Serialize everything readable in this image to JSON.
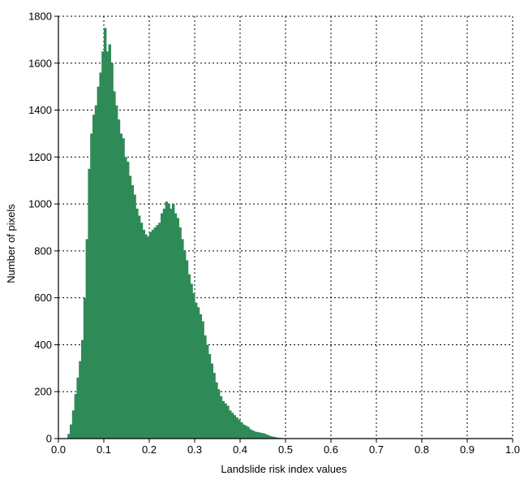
{
  "chart_data": {
    "type": "bar",
    "title": "",
    "xlabel": "Landslide risk index values",
    "ylabel": "Number of pixels",
    "xlim": [
      0.0,
      1.0
    ],
    "ylim": [
      0,
      1800
    ],
    "x_ticks": [
      "0.0",
      "0.1",
      "0.2",
      "0.3",
      "0.4",
      "0.5",
      "0.6",
      "0.7",
      "0.8",
      "0.9",
      "1.0"
    ],
    "y_ticks": [
      "0",
      "200",
      "400",
      "600",
      "800",
      "1000",
      "1200",
      "1400",
      "1600",
      "1800"
    ],
    "grid": true,
    "bar_color": "#2e8b57",
    "bins": {
      "x": [
        0.02,
        0.025,
        0.03,
        0.035,
        0.04,
        0.045,
        0.05,
        0.055,
        0.06,
        0.065,
        0.07,
        0.075,
        0.08,
        0.085,
        0.09,
        0.095,
        0.1,
        0.105,
        0.11,
        0.115,
        0.12,
        0.125,
        0.13,
        0.135,
        0.14,
        0.145,
        0.15,
        0.155,
        0.16,
        0.165,
        0.17,
        0.175,
        0.18,
        0.185,
        0.19,
        0.195,
        0.2,
        0.205,
        0.21,
        0.215,
        0.22,
        0.225,
        0.23,
        0.235,
        0.24,
        0.245,
        0.25,
        0.255,
        0.26,
        0.265,
        0.27,
        0.275,
        0.28,
        0.285,
        0.29,
        0.295,
        0.3,
        0.305,
        0.31,
        0.315,
        0.32,
        0.325,
        0.33,
        0.335,
        0.34,
        0.345,
        0.35,
        0.355,
        0.36,
        0.365,
        0.37,
        0.375,
        0.38,
        0.385,
        0.39,
        0.395,
        0.4,
        0.405,
        0.41,
        0.415,
        0.42,
        0.425,
        0.43,
        0.435,
        0.44,
        0.445,
        0.45,
        0.455,
        0.46,
        0.465,
        0.47,
        0.475,
        0.48,
        0.485,
        0.49,
        0.495,
        0.5
      ],
      "y": [
        20,
        60,
        120,
        190,
        260,
        330,
        420,
        600,
        850,
        1150,
        1300,
        1380,
        1420,
        1500,
        1560,
        1650,
        1750,
        1650,
        1680,
        1600,
        1480,
        1420,
        1360,
        1300,
        1280,
        1200,
        1180,
        1120,
        1080,
        1040,
        980,
        950,
        920,
        890,
        870,
        860,
        880,
        890,
        900,
        910,
        920,
        960,
        980,
        1010,
        1000,
        980,
        1000,
        960,
        940,
        900,
        850,
        800,
        760,
        700,
        660,
        620,
        580,
        560,
        530,
        500,
        440,
        400,
        360,
        320,
        280,
        240,
        210,
        180,
        160,
        150,
        140,
        120,
        110,
        100,
        90,
        80,
        70,
        60,
        55,
        50,
        40,
        35,
        30,
        28,
        26,
        24,
        22,
        18,
        14,
        10,
        8,
        6,
        4,
        3,
        2,
        1,
        0
      ]
    }
  }
}
